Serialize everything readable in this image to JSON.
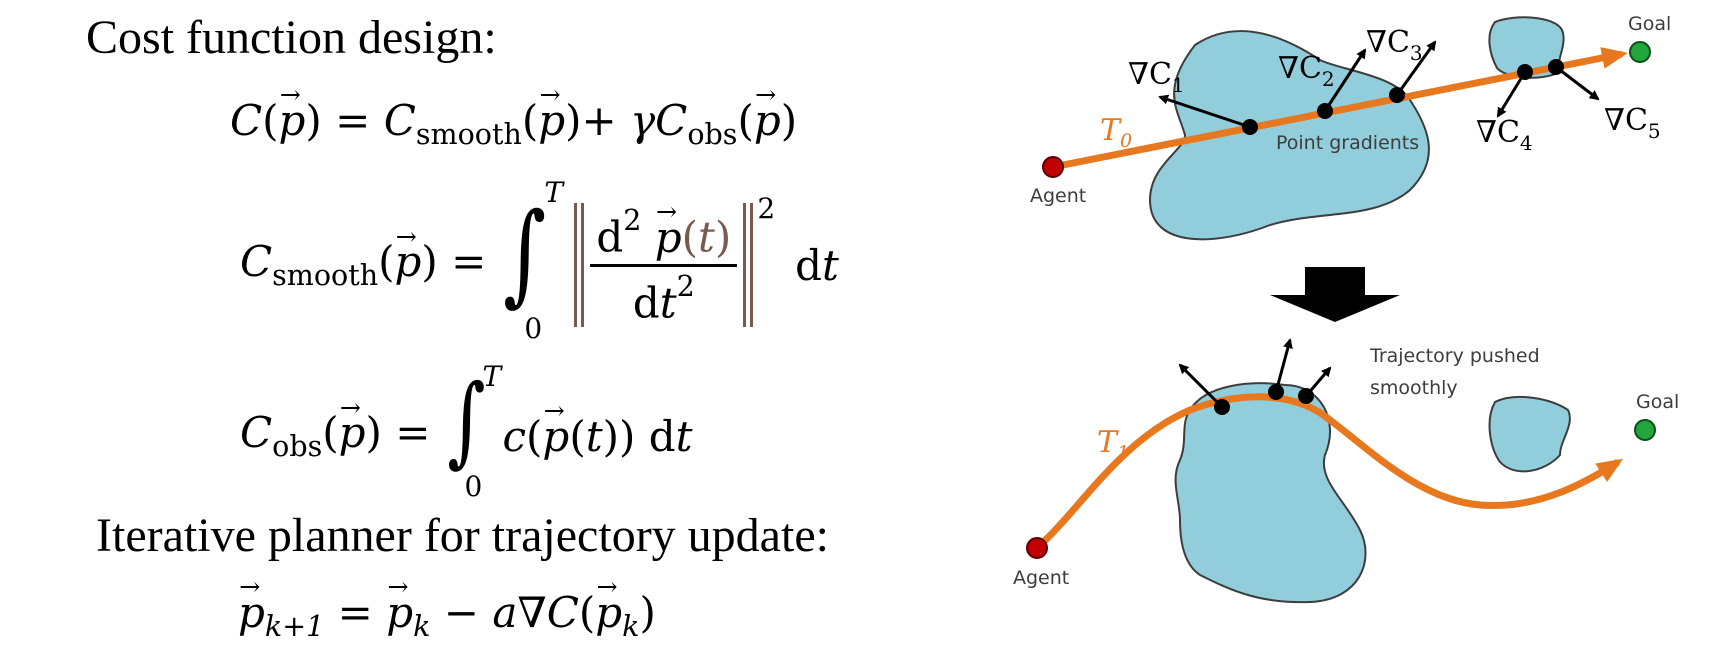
{
  "left": {
    "heading_cost": "Cost function design:",
    "heading_iter": "Iterative planner for trajectory update:",
    "eq1": {
      "C": "C",
      "p": "p",
      "eq": "=",
      "smooth": "smooth",
      "plus": "+",
      "gamma": "γ",
      "obs": "obs"
    },
    "eq2": {
      "upper": "T",
      "lower": "0",
      "d": "d",
      "two": "2",
      "t": "t",
      "dt": "d"
    },
    "eq3": {
      "c": "c",
      "upper": "T",
      "lower": "0",
      "t": "t",
      "dt": "d"
    },
    "eq4": {
      "sub_next": "k+1",
      "sub_k": "k",
      "minus": "−",
      "a": "a",
      "nabla": "∇"
    }
  },
  "right": {
    "top": {
      "t0_label": "T",
      "t0_sub": "0",
      "agent": "Agent",
      "goal": "Goal",
      "point_gradients": "Point gradients",
      "grads": [
        {
          "nabla": "∇C",
          "sub": "1"
        },
        {
          "nabla": "∇C",
          "sub": "2"
        },
        {
          "nabla": "∇C",
          "sub": "3"
        },
        {
          "nabla": "∇C",
          "sub": "4"
        },
        {
          "nabla": "∇C",
          "sub": "5"
        }
      ]
    },
    "bottom": {
      "t1_label": "T",
      "t1_sub": "1",
      "agent": "Agent",
      "goal": "Goal",
      "caption_line1": "Trajectory pushed",
      "caption_line2": "smoothly"
    },
    "colors": {
      "obstacle_fill": "#92cddc",
      "obstacle_stroke": "#3d3d3d",
      "trajectory": "#e8781e",
      "agent": "#c00000",
      "goal": "#22a53a",
      "arrow_down": "#000000"
    }
  }
}
